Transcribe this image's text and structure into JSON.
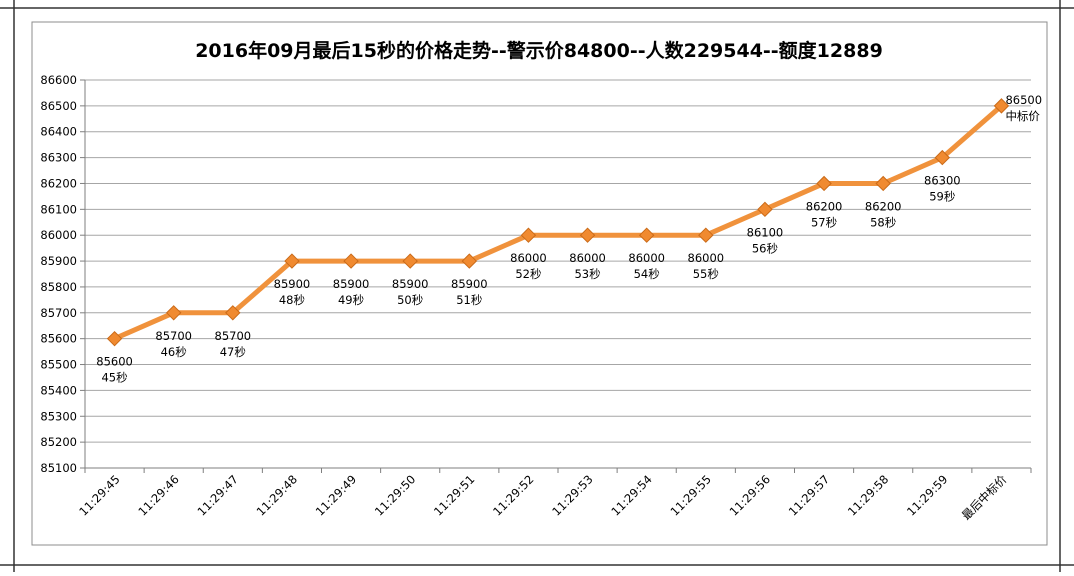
{
  "chart_data": {
    "type": "line",
    "title": "2016年09月最后15秒的价格走势--警示价84800--人数229544--额度12889",
    "xlabel": "",
    "ylabel": "",
    "ylim": [
      85100,
      86600
    ],
    "ytick_step": 100,
    "grid": true,
    "categories": [
      "11:29:45",
      "11:29:46",
      "11:29:47",
      "11:29:48",
      "11:29:49",
      "11:29:50",
      "11:29:51",
      "11:29:52",
      "11:29:53",
      "11:29:54",
      "11:29:55",
      "11:29:56",
      "11:29:57",
      "11:29:58",
      "11:29:59",
      "最后中标价"
    ],
    "series": [
      {
        "values": [
          85600,
          85700,
          85700,
          85900,
          85900,
          85900,
          85900,
          86000,
          86000,
          86000,
          86000,
          86100,
          86200,
          86200,
          86300,
          86500
        ],
        "color": "#f0923c",
        "marker_color": "#f08a30"
      }
    ],
    "data_labels": [
      {
        "value": "85600",
        "note": "45秒"
      },
      {
        "value": "85700",
        "note": "46秒"
      },
      {
        "value": "85700",
        "note": "47秒"
      },
      {
        "value": "85900",
        "note": "48秒"
      },
      {
        "value": "85900",
        "note": "49秒"
      },
      {
        "value": "85900",
        "note": "50秒"
      },
      {
        "value": "85900",
        "note": "51秒"
      },
      {
        "value": "86000",
        "note": "52秒"
      },
      {
        "value": "86000",
        "note": "53秒"
      },
      {
        "value": "86000",
        "note": "54秒"
      },
      {
        "value": "86000",
        "note": "55秒"
      },
      {
        "value": "86100",
        "note": "56秒"
      },
      {
        "value": "86200",
        "note": "57秒"
      },
      {
        "value": "86200",
        "note": "58秒"
      },
      {
        "value": "86300",
        "note": "59秒"
      },
      {
        "value": "86500",
        "note": "中标价"
      }
    ],
    "gridline_color": "#a6a6a6",
    "border_color": "#7f7f7f"
  }
}
